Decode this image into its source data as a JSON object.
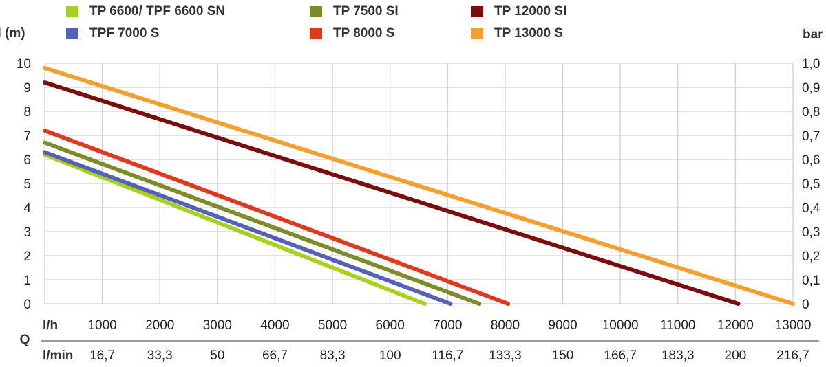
{
  "chart_data": {
    "type": "line",
    "ylabel_left": "H (m)",
    "ylabel_right": "bar",
    "x_row_label": "l/h",
    "x2_row_label": "l/min",
    "x_group_label": "Q",
    "xlim": [
      0,
      13000
    ],
    "ylim": [
      0,
      10
    ],
    "y_ticks": [
      "0",
      "1",
      "2",
      "3",
      "4",
      "5",
      "6",
      "7",
      "8",
      "9",
      "10"
    ],
    "y2_ticks": [
      "0",
      "0,1",
      "0,2",
      "0,3",
      "0,4",
      "0,5",
      "0,6",
      "0,7",
      "0,8",
      "0,9",
      "1,0"
    ],
    "x_ticks": [
      1000,
      2000,
      3000,
      4000,
      5000,
      6000,
      7000,
      8000,
      9000,
      10000,
      11000,
      12000,
      13000
    ],
    "x_tick_labels": [
      "1000",
      "2000",
      "3000",
      "4000",
      "5000",
      "6000",
      "7000",
      "8000",
      "9000",
      "10000",
      "11000",
      "12000",
      "13000"
    ],
    "x2_tick_labels": [
      "16,7",
      "33,3",
      "50",
      "66,7",
      "83,3",
      "100",
      "116,7",
      "133,3",
      "150",
      "166,7",
      "183,3",
      "200",
      "216,7"
    ],
    "grid": true,
    "legend_position": "top",
    "series": [
      {
        "name": "TP 6600/ TPF 6600 SN",
        "color": "#a8d01e",
        "x": [
          0,
          6600
        ],
        "y": [
          6.2,
          0
        ]
      },
      {
        "name": "TPF 7000 S",
        "color": "#5561b8",
        "x": [
          0,
          7050
        ],
        "y": [
          6.3,
          0
        ]
      },
      {
        "name": "TP 7500 SI",
        "color": "#7f8a2a",
        "x": [
          0,
          7550
        ],
        "y": [
          6.7,
          0
        ]
      },
      {
        "name": "TP 8000 S",
        "color": "#e03a1e",
        "x": [
          0,
          8050
        ],
        "y": [
          7.2,
          0
        ]
      },
      {
        "name": "TP 12000 SI",
        "color": "#7a0e0e",
        "x": [
          0,
          12050
        ],
        "y": [
          9.2,
          0
        ]
      },
      {
        "name": "TP 13000 S",
        "color": "#f4a030",
        "x": [
          0,
          13000
        ],
        "y": [
          9.8,
          0
        ]
      }
    ]
  }
}
